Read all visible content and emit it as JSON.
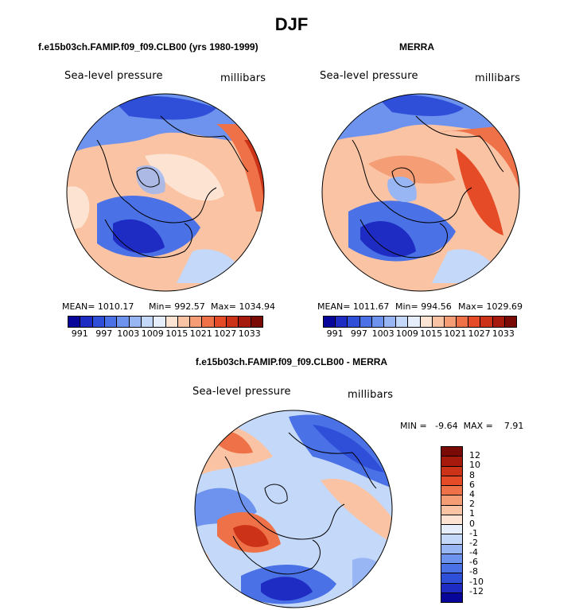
{
  "title": "DJF",
  "panels": {
    "model": {
      "title": "f.e15b03ch.FAMIP.f09_f09.CLB00 (yrs 1980-1999)",
      "variable": "Sea-level pressure",
      "units": "millibars",
      "stats": {
        "mean": "MEAN= 1010.17",
        "min": "Min= 992.57",
        "max": "Max= 1034.94"
      }
    },
    "obs": {
      "title": "MERRA",
      "variable": "Sea-level pressure",
      "units": "millibars",
      "stats": {
        "mean": "MEAN= 1011.67",
        "min": "Min= 994.56",
        "max": "Max= 1029.69"
      }
    },
    "diff": {
      "title": "f.e15b03ch.FAMIP.f09_f09.CLB00 - MERRA",
      "variable": "Sea-level pressure",
      "units": "millibars",
      "minmax": "MIN =   -9.64  MAX =    7.91"
    }
  },
  "colorbar": {
    "ticks": [
      "991",
      "997",
      "1003",
      "1009",
      "1015",
      "1021",
      "1027",
      "1033"
    ],
    "colors": [
      "#08069a",
      "#1f2cc4",
      "#2f4fd9",
      "#4a71e6",
      "#6d93ee",
      "#98b6f4",
      "#c4d8f9",
      "#e6eefb",
      "#fde3d2",
      "#fac3a3",
      "#f59d74",
      "#ee7148",
      "#e54b26",
      "#cc3217",
      "#a51a0d",
      "#7a0a06"
    ]
  },
  "diff_colorbar": {
    "labels": [
      "12",
      "10",
      "8",
      "6",
      "4",
      "2",
      "1",
      "0",
      "-1",
      "-2",
      "-4",
      "-6",
      "-8",
      "-10",
      "-12"
    ],
    "colors": [
      "#7a0a06",
      "#a51a0d",
      "#cc3217",
      "#e54b26",
      "#ee7148",
      "#f59d74",
      "#fac3a3",
      "#fde3d2",
      "#e6eefb",
      "#c4d8f9",
      "#98b6f4",
      "#6d93ee",
      "#4a71e6",
      "#2f4fd9",
      "#1f2cc4",
      "#08069a"
    ]
  }
}
